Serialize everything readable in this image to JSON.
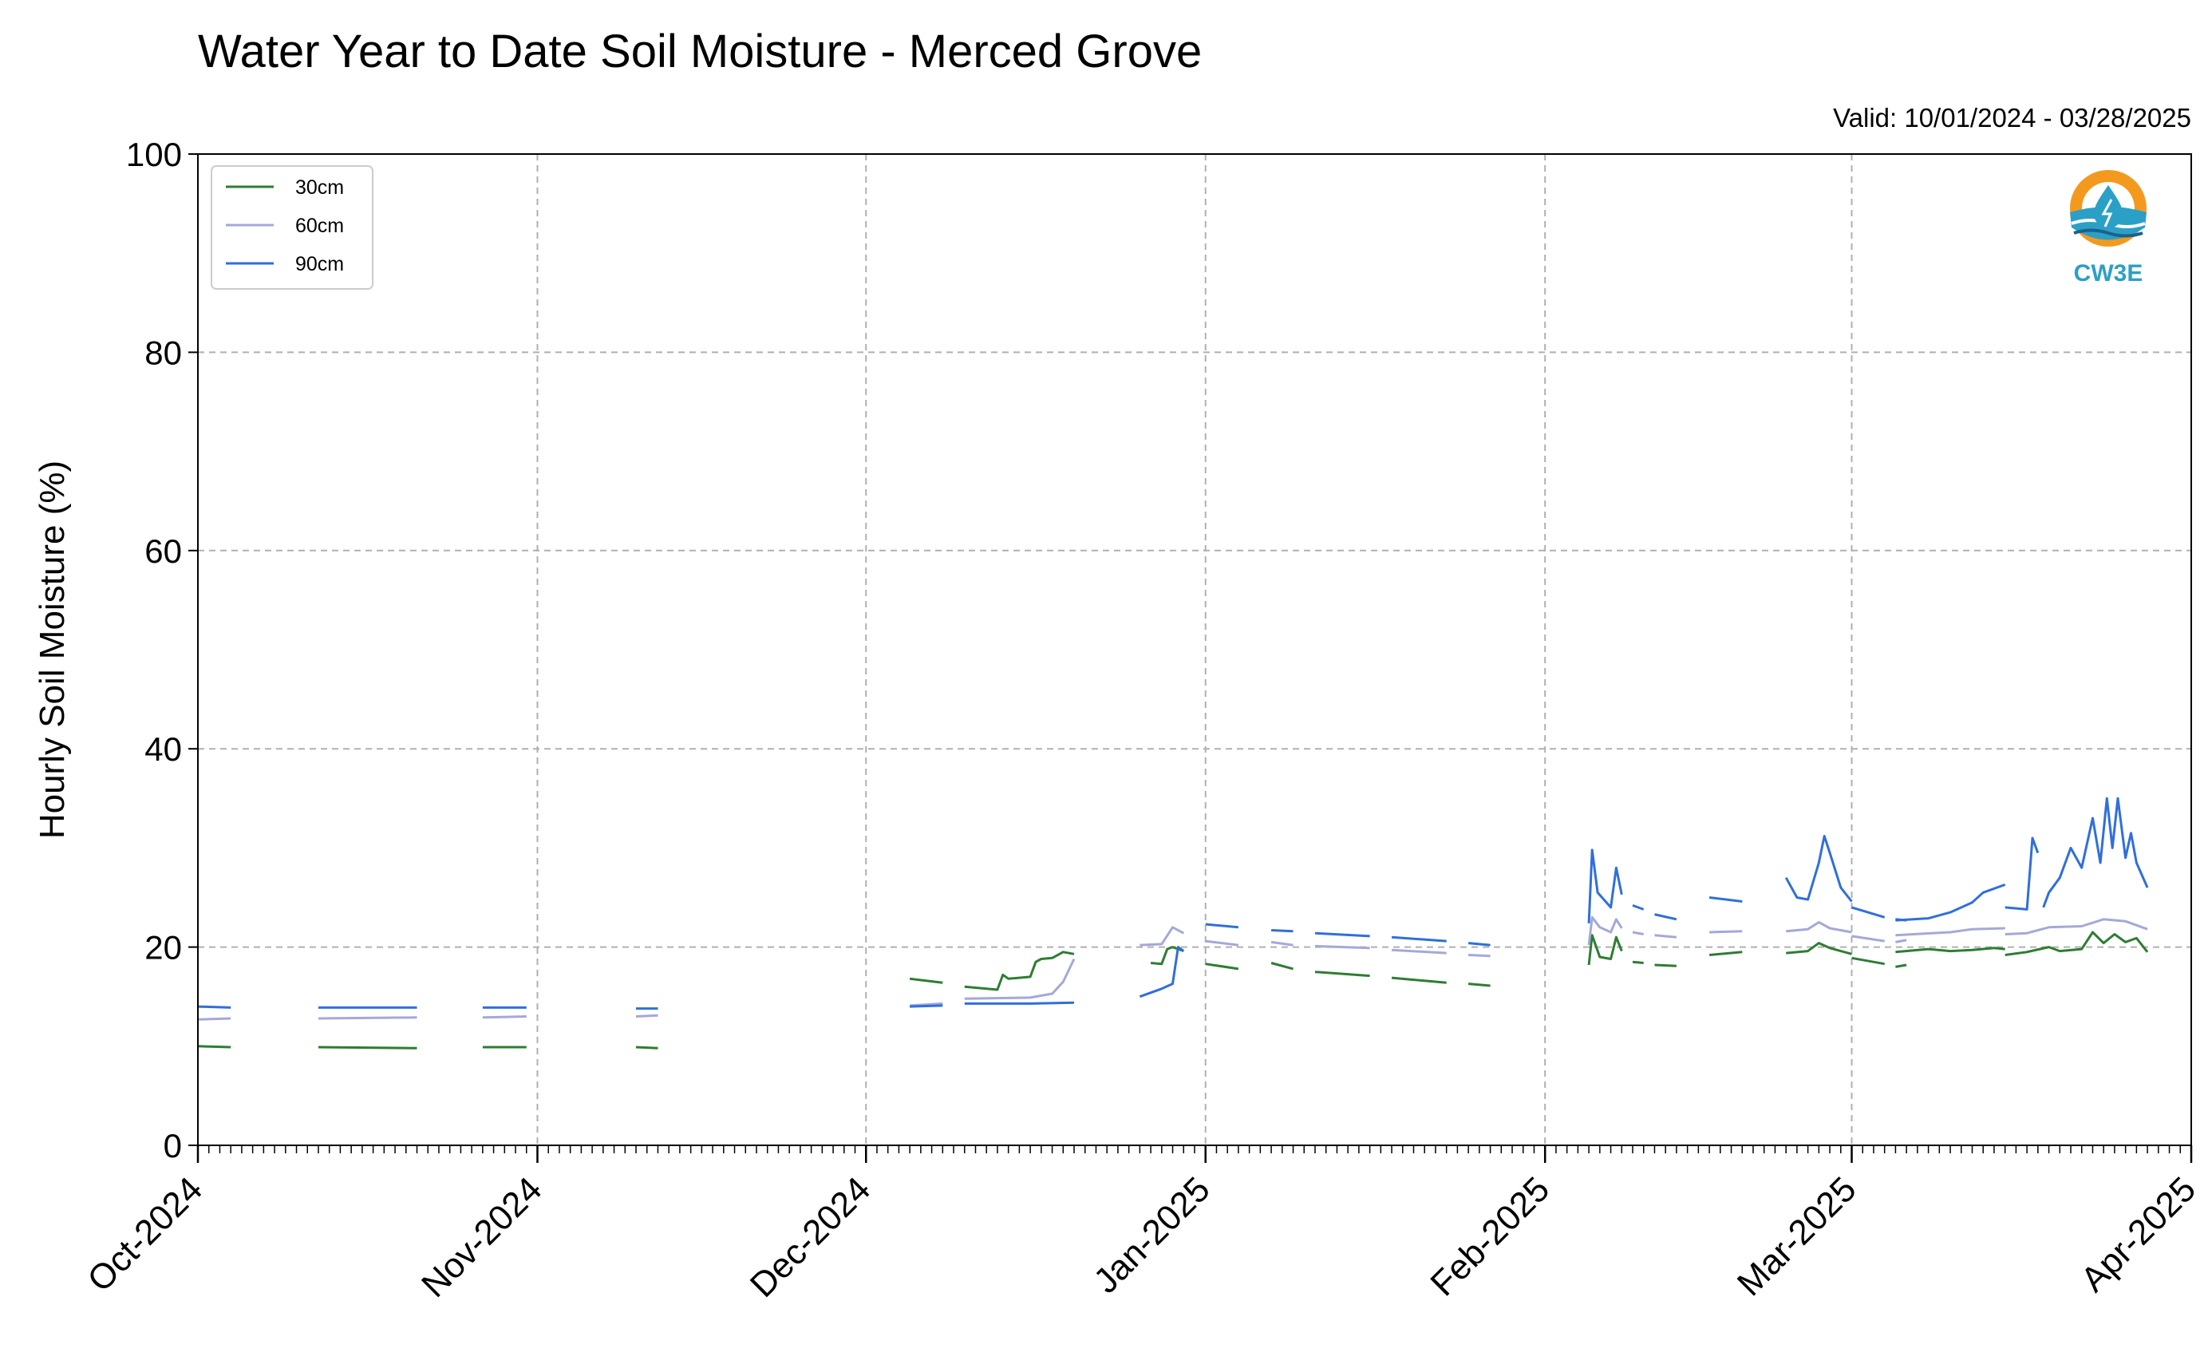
{
  "title": "Water Year to Date Soil Moisture - Merced Grove",
  "valid_range": "Valid: 10/01/2024 - 03/28/2025",
  "logo": {
    "text": "CW3E",
    "icon": "cw3e-water-drop-logo-icon",
    "colors": [
      "#f39a1e",
      "#2ba0c6",
      "#1d5f8c"
    ]
  },
  "chart_data": {
    "type": "line",
    "title": "Water Year to Date Soil Moisture - Merced Grove",
    "xlabel": "",
    "ylabel": "Hourly Soil Moisture (%)",
    "xlim": [
      "2024-10-01",
      "2025-04-01"
    ],
    "ylim": [
      0,
      100
    ],
    "yticks": [
      0,
      20,
      40,
      60,
      80,
      100
    ],
    "ytick_labels": [
      "0",
      "20",
      "40",
      "60",
      "80",
      "100"
    ],
    "xticks": [
      "2024-10-01",
      "2024-11-01",
      "2024-12-01",
      "2025-01-01",
      "2025-02-01",
      "2025-03-01",
      "2025-04-01"
    ],
    "xtick_labels": [
      "Oct-2024",
      "Nov-2024",
      "Dec-2024",
      "Jan-2025",
      "Feb-2025",
      "Mar-2025",
      "Apr-2025"
    ],
    "grid": true,
    "legend_position": "top-left",
    "series": [
      {
        "name": "30cm",
        "color": "#2e7d32",
        "segments": [
          [
            [
              "2024-10-01",
              10.0
            ],
            [
              "2024-10-04",
              9.9
            ]
          ],
          [
            [
              "2024-10-12",
              9.9
            ],
            [
              "2024-10-21",
              9.8
            ]
          ],
          [
            [
              "2024-10-27",
              9.9
            ],
            [
              "2024-10-31",
              9.9
            ]
          ],
          [
            [
              "2024-11-10",
              9.9
            ],
            [
              "2024-11-12",
              9.8
            ]
          ],
          [
            [
              "2024-12-05",
              16.8
            ],
            [
              "2024-12-08",
              16.4
            ]
          ],
          [
            [
              "2024-12-10",
              16.0
            ],
            [
              "2024-12-13",
              15.7
            ],
            [
              "2024-12-13.5",
              17.2
            ],
            [
              "2024-12-14",
              16.8
            ],
            [
              "2024-12-16",
              17.0
            ],
            [
              "2024-12-16.5",
              18.5
            ],
            [
              "2024-12-17",
              18.8
            ],
            [
              "2024-12-18",
              18.9
            ],
            [
              "2024-12-19",
              19.5
            ],
            [
              "2024-12-20",
              19.3
            ]
          ],
          [
            [
              "2024-12-27",
              18.4
            ],
            [
              "2024-12-28",
              18.3
            ],
            [
              "2024-12-28.5",
              19.8
            ],
            [
              "2024-12-29",
              20.0
            ],
            [
              "2024-12-30",
              19.6
            ]
          ],
          [
            [
              "2025-01-01",
              18.3
            ],
            [
              "2025-01-04",
              17.8
            ]
          ],
          [
            [
              "2025-01-07",
              18.4
            ],
            [
              "2025-01-09",
              17.8
            ]
          ],
          [
            [
              "2025-01-11",
              17.5
            ],
            [
              "2025-01-16",
              17.1
            ]
          ],
          [
            [
              "2025-01-18",
              16.9
            ],
            [
              "2025-01-23",
              16.4
            ]
          ],
          [
            [
              "2025-01-25",
              16.3
            ],
            [
              "2025-01-27",
              16.1
            ]
          ],
          [
            [
              "2025-02-05",
              18.2
            ],
            [
              "2025-02-05.3",
              21.2
            ],
            [
              "2025-02-06",
              19.0
            ],
            [
              "2025-02-07",
              18.8
            ],
            [
              "2025-02-07.5",
              21.0
            ],
            [
              "2025-02-08",
              19.6
            ]
          ],
          [
            [
              "2025-02-09",
              18.5
            ],
            [
              "2025-02-10",
              18.4
            ]
          ],
          [
            [
              "2025-02-11",
              18.2
            ],
            [
              "2025-02-13",
              18.1
            ]
          ],
          [
            [
              "2025-02-16",
              19.2
            ],
            [
              "2025-02-19",
              19.5
            ]
          ],
          [
            [
              "2025-02-23",
              19.4
            ],
            [
              "2025-02-25",
              19.6
            ],
            [
              "2025-02-26",
              20.4
            ],
            [
              "2025-02-27",
              19.9
            ],
            [
              "2025-03-01",
              19.3
            ]
          ],
          [
            [
              "2025-03-01",
              18.9
            ],
            [
              "2025-03-04",
              18.3
            ]
          ],
          [
            [
              "2025-03-05",
              18.0
            ],
            [
              "2025-03-06",
              18.2
            ]
          ],
          [
            [
              "2025-03-05",
              19.5
            ],
            [
              "2025-03-08",
              19.8
            ],
            [
              "2025-03-10",
              19.6
            ],
            [
              "2025-03-12",
              19.7
            ],
            [
              "2025-03-14",
              19.9
            ],
            [
              "2025-03-15",
              19.8
            ]
          ],
          [
            [
              "2025-03-15",
              19.2
            ],
            [
              "2025-03-17",
              19.5
            ],
            [
              "2025-03-19",
              20.0
            ],
            [
              "2025-03-20",
              19.6
            ],
            [
              "2025-03-22",
              19.8
            ],
            [
              "2025-03-23",
              21.5
            ],
            [
              "2025-03-24",
              20.4
            ],
            [
              "2025-03-25",
              21.3
            ],
            [
              "2025-03-26",
              20.5
            ],
            [
              "2025-03-27",
              20.9
            ],
            [
              "2025-03-28",
              19.5
            ]
          ]
        ]
      },
      {
        "name": "60cm",
        "color": "#a5a8d8",
        "segments": [
          [
            [
              "2024-10-01",
              12.7
            ],
            [
              "2024-10-04",
              12.8
            ]
          ],
          [
            [
              "2024-10-12",
              12.8
            ],
            [
              "2024-10-21",
              12.9
            ]
          ],
          [
            [
              "2024-10-27",
              12.9
            ],
            [
              "2024-10-31",
              13.0
            ]
          ],
          [
            [
              "2024-11-10",
              13.0
            ],
            [
              "2024-11-12",
              13.1
            ]
          ],
          [
            [
              "2024-12-05",
              14.1
            ],
            [
              "2024-12-08",
              14.3
            ]
          ],
          [
            [
              "2024-12-10",
              14.8
            ],
            [
              "2024-12-16",
              14.9
            ],
            [
              "2024-12-18",
              15.3
            ],
            [
              "2024-12-19",
              16.5
            ],
            [
              "2024-12-20",
              18.8
            ]
          ],
          [
            [
              "2024-12-26",
              20.2
            ],
            [
              "2024-12-28",
              20.3
            ],
            [
              "2024-12-29",
              22.0
            ],
            [
              "2024-12-30",
              21.4
            ]
          ],
          [
            [
              "2025-01-01",
              20.6
            ],
            [
              "2025-01-04",
              20.2
            ]
          ],
          [
            [
              "2025-01-07",
              20.5
            ],
            [
              "2025-01-09",
              20.2
            ]
          ],
          [
            [
              "2025-01-11",
              20.1
            ],
            [
              "2025-01-16",
              19.9
            ]
          ],
          [
            [
              "2025-01-18",
              19.7
            ],
            [
              "2025-01-23",
              19.4
            ]
          ],
          [
            [
              "2025-01-25",
              19.2
            ],
            [
              "2025-01-27",
              19.1
            ]
          ],
          [
            [
              "2025-02-05",
              20.2
            ],
            [
              "2025-02-05.3",
              23.0
            ],
            [
              "2025-02-06",
              22.0
            ],
            [
              "2025-02-07",
              21.5
            ],
            [
              "2025-02-07.5",
              22.8
            ],
            [
              "2025-02-08",
              21.9
            ]
          ],
          [
            [
              "2025-02-09",
              21.5
            ],
            [
              "2025-02-10",
              21.3
            ]
          ],
          [
            [
              "2025-02-11",
              21.2
            ],
            [
              "2025-02-13",
              21.0
            ]
          ],
          [
            [
              "2025-02-16",
              21.5
            ],
            [
              "2025-02-19",
              21.6
            ]
          ],
          [
            [
              "2025-02-23",
              21.6
            ],
            [
              "2025-02-25",
              21.8
            ],
            [
              "2025-02-26",
              22.5
            ],
            [
              "2025-02-27",
              21.9
            ],
            [
              "2025-03-01",
              21.5
            ]
          ],
          [
            [
              "2025-03-01",
              21.1
            ],
            [
              "2025-03-04",
              20.6
            ]
          ],
          [
            [
              "2025-03-05",
              20.5
            ],
            [
              "2025-03-06",
              20.7
            ]
          ],
          [
            [
              "2025-03-05",
              21.2
            ],
            [
              "2025-03-10",
              21.5
            ],
            [
              "2025-03-12",
              21.8
            ],
            [
              "2025-03-15",
              21.9
            ]
          ],
          [
            [
              "2025-03-15",
              21.3
            ],
            [
              "2025-03-17",
              21.4
            ],
            [
              "2025-03-19",
              22.0
            ],
            [
              "2025-03-22",
              22.1
            ],
            [
              "2025-03-24",
              22.8
            ],
            [
              "2025-03-26",
              22.6
            ],
            [
              "2025-03-28",
              21.8
            ]
          ]
        ]
      },
      {
        "name": "90cm",
        "color": "#2f6fdb",
        "segments": [
          [
            [
              "2024-10-01",
              14.0
            ],
            [
              "2024-10-04",
              13.9
            ]
          ],
          [
            [
              "2024-10-12",
              13.9
            ],
            [
              "2024-10-21",
              13.9
            ]
          ],
          [
            [
              "2024-10-27",
              13.9
            ],
            [
              "2024-10-31",
              13.9
            ]
          ],
          [
            [
              "2024-11-10",
              13.8
            ],
            [
              "2024-11-12",
              13.8
            ]
          ],
          [
            [
              "2024-12-05",
              14.0
            ],
            [
              "2024-12-08",
              14.1
            ]
          ],
          [
            [
              "2024-12-10",
              14.3
            ],
            [
              "2024-12-16",
              14.3
            ],
            [
              "2024-12-20",
              14.4
            ]
          ],
          [
            [
              "2024-12-26",
              15.0
            ],
            [
              "2024-12-28",
              15.8
            ],
            [
              "2024-12-29",
              16.3
            ],
            [
              "2024-12-29.5",
              20.0
            ],
            [
              "2024-12-30",
              19.6
            ]
          ],
          [
            [
              "2025-01-01",
              22.3
            ],
            [
              "2025-01-04",
              22.0
            ]
          ],
          [
            [
              "2025-01-07",
              21.7
            ],
            [
              "2025-01-09",
              21.6
            ]
          ],
          [
            [
              "2025-01-11",
              21.4
            ],
            [
              "2025-01-16",
              21.1
            ]
          ],
          [
            [
              "2025-01-18",
              21.0
            ],
            [
              "2025-01-23",
              20.6
            ]
          ],
          [
            [
              "2025-01-25",
              20.4
            ],
            [
              "2025-01-27",
              20.2
            ]
          ],
          [
            [
              "2025-02-05",
              22.4
            ],
            [
              "2025-02-05.3",
              29.8
            ],
            [
              "2025-02-05.8",
              25.5
            ],
            [
              "2025-02-07",
              24.0
            ],
            [
              "2025-02-07.5",
              28.0
            ],
            [
              "2025-02-08",
              25.3
            ]
          ],
          [
            [
              "2025-02-09",
              24.2
            ],
            [
              "2025-02-10",
              23.8
            ]
          ],
          [
            [
              "2025-02-11",
              23.3
            ],
            [
              "2025-02-13",
              22.8
            ]
          ],
          [
            [
              "2025-02-16",
              25.0
            ],
            [
              "2025-02-19",
              24.6
            ]
          ],
          [
            [
              "2025-02-23",
              27.0
            ],
            [
              "2025-02-24",
              25.0
            ],
            [
              "2025-02-25",
              24.8
            ],
            [
              "2025-02-26",
              28.5
            ],
            [
              "2025-02-26.5",
              31.2
            ],
            [
              "2025-02-27",
              29.5
            ],
            [
              "2025-02-28",
              26.0
            ],
            [
              "2025-03-01",
              24.6
            ]
          ],
          [
            [
              "2025-03-01",
              24.0
            ],
            [
              "2025-03-04",
              23.0
            ]
          ],
          [
            [
              "2025-03-05",
              22.8
            ],
            [
              "2025-03-06",
              22.7
            ]
          ],
          [
            [
              "2025-03-05",
              22.7
            ],
            [
              "2025-03-08",
              22.9
            ],
            [
              "2025-03-10",
              23.5
            ],
            [
              "2025-03-12",
              24.5
            ],
            [
              "2025-03-13",
              25.5
            ],
            [
              "2025-03-15",
              26.3
            ]
          ],
          [
            [
              "2025-03-15",
              24.0
            ],
            [
              "2025-03-17",
              23.8
            ],
            [
              "2025-03-17.5",
              31.0
            ],
            [
              "2025-03-18",
              29.5
            ]
          ],
          [
            [
              "2025-03-18.5",
              24.0
            ],
            [
              "2025-03-19",
              25.5
            ],
            [
              "2025-03-20",
              27.0
            ],
            [
              "2025-03-21",
              30.0
            ],
            [
              "2025-03-22",
              28.0
            ],
            [
              "2025-03-23",
              33.0
            ],
            [
              "2025-03-23.7",
              28.5
            ],
            [
              "2025-03-24.3",
              35.0
            ],
            [
              "2025-03-24.8",
              30.0
            ],
            [
              "2025-03-25.3",
              35.0
            ],
            [
              "2025-03-26",
              29.0
            ],
            [
              "2025-03-26.5",
              31.5
            ],
            [
              "2025-03-27",
              28.5
            ],
            [
              "2025-03-28",
              26.0
            ]
          ]
        ]
      }
    ]
  }
}
